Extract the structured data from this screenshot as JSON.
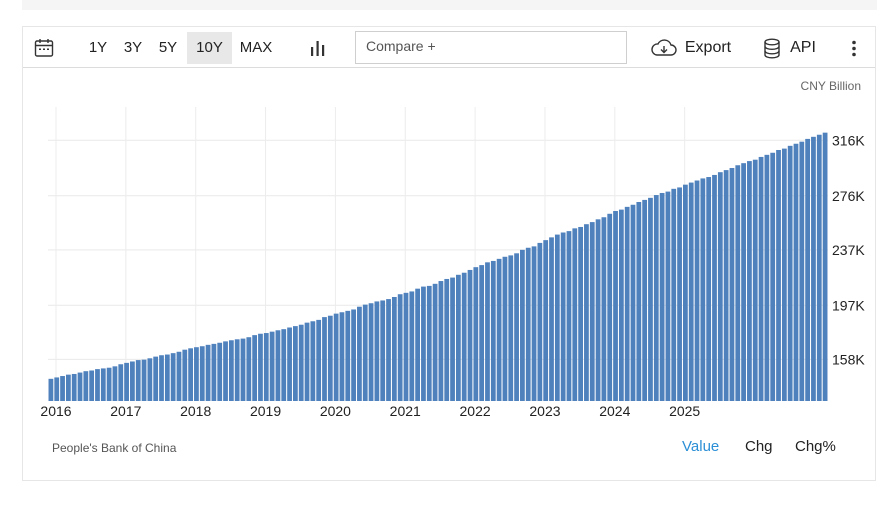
{
  "toolbar": {
    "calendar_icon": "calendar-icon",
    "ranges": [
      "1Y",
      "3Y",
      "5Y",
      "10Y",
      "MAX"
    ],
    "active_range": "10Y",
    "chart_type_icon": "bar-chart-icon",
    "compare_placeholder": "Compare +",
    "export_label": "Export",
    "export_icon": "cloud-download-icon",
    "api_label": "API",
    "api_icon": "database-icon",
    "more_icon": "vertical-dots-icon"
  },
  "chart": {
    "unit": "CNY Billion",
    "bar_color": "#4f81bd"
  },
  "footer": {
    "source": "People's Bank of China",
    "tabs": [
      "Value",
      "Chg",
      "Chg%"
    ],
    "active_tab": "Value"
  },
  "chart_data": {
    "type": "bar",
    "yaxis_position": "right",
    "ylim": [
      128000,
      340000
    ],
    "yticks": [
      158000,
      197000,
      237000,
      276000,
      316000
    ],
    "ytick_labels": [
      "158K",
      "197K",
      "237K",
      "276K",
      "316K"
    ],
    "xtick_labels": [
      "2016",
      "2017",
      "2018",
      "2019",
      "2020",
      "2021",
      "2022",
      "2023",
      "2024",
      "2025"
    ],
    "grid": true,
    "start": "2016-01",
    "values": [
      144000,
      145000,
      146000,
      147000,
      147500,
      148500,
      149500,
      150000,
      151000,
      151500,
      152000,
      153000,
      154500,
      155500,
      156500,
      157500,
      157800,
      158800,
      160000,
      161000,
      161500,
      162500,
      163500,
      165000,
      166000,
      166800,
      167500,
      168500,
      169200,
      170000,
      171000,
      171800,
      172500,
      173000,
      174000,
      175500,
      176500,
      177000,
      178000,
      179000,
      179800,
      181000,
      182000,
      183000,
      184500,
      185500,
      186500,
      188500,
      189500,
      191000,
      192000,
      193000,
      194000,
      196000,
      197500,
      198500,
      199800,
      200500,
      201500,
      203000,
      205000,
      206000,
      207000,
      209000,
      210500,
      211000,
      212500,
      214500,
      216000,
      217000,
      219000,
      220500,
      222500,
      224500,
      226000,
      228000,
      229000,
      230500,
      232000,
      233000,
      234500,
      237000,
      238500,
      239500,
      242000,
      244000,
      246000,
      248000,
      249500,
      250500,
      252500,
      253500,
      255500,
      257000,
      259000,
      260500,
      263000,
      265000,
      266000,
      268000,
      269500,
      271500,
      273000,
      274500,
      276500,
      278000,
      279000,
      281000,
      282000,
      284000,
      285500,
      287000,
      288500,
      289500,
      291000,
      293000,
      294500,
      296000,
      298000,
      299500,
      301000,
      302000,
      304000,
      305500,
      307000,
      309000,
      310000,
      312000,
      313500,
      315000,
      317000,
      318500,
      320000,
      321500
    ]
  }
}
